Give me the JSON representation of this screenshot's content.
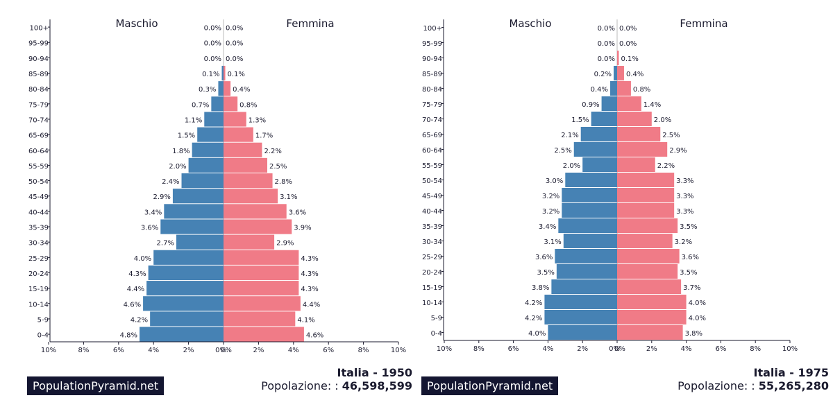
{
  "brand": "PopulationPyramid.net",
  "colors": {
    "male": "#4682b4",
    "female": "#f07b87"
  },
  "chart_data": [
    {
      "type": "bar",
      "country": "Italia - 1950",
      "population_label": "Popolazione: :",
      "population": "46,598,599",
      "male_label": "Maschio",
      "female_label": "Femmina",
      "categories": [
        "100+",
        "95-99",
        "90-94",
        "85-89",
        "80-84",
        "75-79",
        "70-74",
        "65-69",
        "60-64",
        "55-59",
        "50-54",
        "45-49",
        "40-44",
        "35-39",
        "30-34",
        "25-29",
        "20-24",
        "15-19",
        "10-14",
        "5-9",
        "0-4"
      ],
      "series": [
        {
          "name": "Maschio",
          "values": [
            0.0,
            0.0,
            0.0,
            0.1,
            0.3,
            0.7,
            1.1,
            1.5,
            1.8,
            2.0,
            2.4,
            2.9,
            3.4,
            3.6,
            2.7,
            4.0,
            4.3,
            4.4,
            4.6,
            4.2,
            4.8
          ]
        },
        {
          "name": "Femmina",
          "values": [
            0.0,
            0.0,
            0.0,
            0.1,
            0.4,
            0.8,
            1.3,
            1.7,
            2.2,
            2.5,
            2.8,
            3.1,
            3.6,
            3.9,
            2.9,
            4.3,
            4.3,
            4.3,
            4.4,
            4.1,
            4.6
          ]
        }
      ],
      "value_labels": {
        "male": [
          "0.0%",
          "0.0%",
          "0.0%",
          "0.1%",
          "0.3%",
          "0.7%",
          "1.1%",
          "1.5%",
          "1.8%",
          "2.0%",
          "2.4%",
          "2.9%",
          "3.4%",
          "3.6%",
          "2.7%",
          "4.0%",
          "4.3%",
          "4.4%",
          "4.6%",
          "4.2%",
          "4.8%"
        ],
        "female": [
          "0.0%",
          "0.0%",
          "0.0%",
          "0.1%",
          "0.4%",
          "0.8%",
          "1.3%",
          "1.7%",
          "2.2%",
          "2.5%",
          "2.8%",
          "3.1%",
          "3.6%",
          "3.9%",
          "2.9%",
          "4.3%",
          "4.3%",
          "4.3%",
          "4.4%",
          "4.1%",
          "4.6%"
        ]
      },
      "xlim": [
        -10,
        10
      ],
      "xticks": [
        "10%",
        "8%",
        "6%",
        "4%",
        "2%",
        "0%",
        "0%",
        "2%",
        "4%",
        "6%",
        "8%",
        "10%"
      ]
    },
    {
      "type": "bar",
      "country": "Italia - 1975",
      "population_label": "Popolazione: :",
      "population": "55,265,280",
      "male_label": "Maschio",
      "female_label": "Femmina",
      "categories": [
        "100+",
        "95-99",
        "90-94",
        "85-89",
        "80-84",
        "75-79",
        "70-74",
        "65-69",
        "60-64",
        "55-59",
        "50-54",
        "45-49",
        "40-44",
        "35-39",
        "30-34",
        "25-29",
        "20-24",
        "15-19",
        "10-14",
        "5-9",
        "0-4"
      ],
      "series": [
        {
          "name": "Maschio",
          "values": [
            0.0,
            0.0,
            0.0,
            0.2,
            0.4,
            0.9,
            1.5,
            2.1,
            2.5,
            2.0,
            3.0,
            3.2,
            3.2,
            3.4,
            3.1,
            3.6,
            3.5,
            3.8,
            4.2,
            4.2,
            4.0
          ]
        },
        {
          "name": "Femmina",
          "values": [
            0.0,
            0.0,
            0.1,
            0.4,
            0.8,
            1.4,
            2.0,
            2.5,
            2.9,
            2.2,
            3.3,
            3.3,
            3.3,
            3.5,
            3.2,
            3.6,
            3.5,
            3.7,
            4.0,
            4.0,
            3.8
          ]
        }
      ],
      "value_labels": {
        "male": [
          "0.0%",
          "0.0%",
          "0.0%",
          "0.2%",
          "0.4%",
          "0.9%",
          "1.5%",
          "2.1%",
          "2.5%",
          "2.0%",
          "3.0%",
          "3.2%",
          "3.2%",
          "3.4%",
          "3.1%",
          "3.6%",
          "3.5%",
          "3.8%",
          "4.2%",
          "4.2%",
          "4.0%"
        ],
        "female": [
          "0.0%",
          "0.0%",
          "0.1%",
          "0.4%",
          "0.8%",
          "1.4%",
          "2.0%",
          "2.5%",
          "2.9%",
          "2.2%",
          "3.3%",
          "3.3%",
          "3.3%",
          "3.5%",
          "3.2%",
          "3.6%",
          "3.5%",
          "3.7%",
          "4.0%",
          "4.0%",
          "3.8%"
        ]
      },
      "xlim": [
        -10,
        10
      ],
      "xticks": [
        "10%",
        "8%",
        "6%",
        "4%",
        "2%",
        "0%",
        "0%",
        "2%",
        "4%",
        "6%",
        "8%",
        "10%"
      ]
    }
  ]
}
